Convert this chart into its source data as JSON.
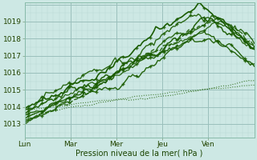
{
  "bg_color": "#cde8e4",
  "grid_color_minor": "#b8d8d4",
  "grid_color_major": "#9abfbb",
  "line_color": "#1a5c00",
  "xlabel": "Pression niveau de la mer( hPa )",
  "xtick_labels": [
    "Lun",
    "Mar",
    "Mer",
    "Jeu",
    "Ven"
  ],
  "xtick_positions": [
    0,
    1,
    2,
    3,
    4
  ],
  "ylim": [
    1012.2,
    1020.1
  ],
  "yticks": [
    1013,
    1014,
    1015,
    1016,
    1017,
    1018,
    1019
  ],
  "xlim": [
    0,
    5
  ],
  "days": 5,
  "n_pts": 120
}
